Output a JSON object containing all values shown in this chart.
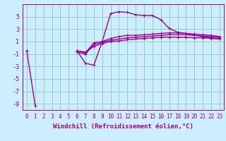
{
  "background_color": "#cceeff",
  "grid_color": "#99ccbb",
  "line_color": "#990099",
  "marker": "+",
  "xlabel": "Windchill (Refroidissement éolien,°C)",
  "xlabel_fontsize": 6.5,
  "xtick_fontsize": 5.5,
  "ytick_fontsize": 6,
  "xlim": [
    -0.5,
    23.5
  ],
  "ylim": [
    -10,
    7
  ],
  "yticks": [
    -9,
    -7,
    -5,
    -3,
    -1,
    1,
    3,
    5
  ],
  "xticks": [
    0,
    1,
    2,
    3,
    4,
    5,
    6,
    7,
    8,
    9,
    10,
    11,
    12,
    13,
    14,
    15,
    16,
    17,
    18,
    19,
    20,
    21,
    22,
    23
  ],
  "series": [
    {
      "x": [
        0,
        1,
        2,
        3,
        4,
        5,
        6,
        7,
        8,
        9,
        10,
        11,
        12,
        13,
        14,
        15,
        16,
        17,
        18,
        19,
        20,
        21,
        22,
        23
      ],
      "y": [
        -0.5,
        -9.3,
        null,
        null,
        null,
        null,
        -0.5,
        -2.5,
        -2.8,
        1.0,
        5.5,
        5.8,
        5.7,
        5.3,
        5.2,
        5.2,
        4.5,
        3.1,
        2.5,
        2.3,
        2.0,
        1.8,
        1.6,
        1.5
      ],
      "linewidth": 1.0,
      "markersize": 2.5
    },
    {
      "x": [
        0,
        1,
        2,
        3,
        4,
        5,
        6,
        7,
        8,
        9,
        10,
        11,
        12,
        13,
        14,
        15,
        16,
        17,
        18,
        19,
        20,
        21,
        22,
        23
      ],
      "y": [
        -0.5,
        null,
        null,
        null,
        null,
        null,
        -0.5,
        -0.8,
        0.8,
        1.0,
        1.5,
        1.8,
        2.0,
        2.0,
        2.1,
        2.2,
        2.3,
        2.4,
        2.4,
        2.3,
        2.2,
        2.1,
        2.0,
        1.8
      ],
      "linewidth": 1.0,
      "markersize": 2.5
    },
    {
      "x": [
        0,
        1,
        2,
        3,
        4,
        5,
        6,
        7,
        8,
        9,
        10,
        11,
        12,
        13,
        14,
        15,
        16,
        17,
        18,
        19,
        20,
        21,
        22,
        23
      ],
      "y": [
        -0.5,
        null,
        null,
        null,
        null,
        null,
        -0.7,
        -1.0,
        0.5,
        0.9,
        1.2,
        1.4,
        1.6,
        1.7,
        1.8,
        1.9,
        2.0,
        2.1,
        2.1,
        2.1,
        2.0,
        1.9,
        1.8,
        1.7
      ],
      "linewidth": 1.0,
      "markersize": 2.5
    },
    {
      "x": [
        0,
        1,
        2,
        3,
        4,
        5,
        6,
        7,
        8,
        9,
        10,
        11,
        12,
        13,
        14,
        15,
        16,
        17,
        18,
        19,
        20,
        21,
        22,
        23
      ],
      "y": [
        -0.5,
        null,
        null,
        null,
        null,
        null,
        -0.5,
        -0.7,
        0.2,
        0.7,
        1.0,
        1.1,
        1.3,
        1.4,
        1.5,
        1.6,
        1.7,
        1.7,
        1.7,
        1.7,
        1.6,
        1.6,
        1.5,
        1.4
      ],
      "linewidth": 1.0,
      "markersize": 2.5
    }
  ]
}
